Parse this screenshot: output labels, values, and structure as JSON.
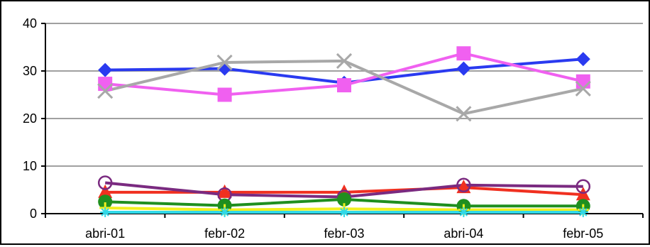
{
  "chart_data": {
    "type": "line",
    "categories": [
      "abri-01",
      "febr-02",
      "febr-03",
      "abri-04",
      "febr-05"
    ],
    "ylim": [
      0,
      40
    ],
    "yticks": [
      0,
      10,
      20,
      30,
      40
    ],
    "ytick_labels": [
      "0",
      "10",
      "20",
      "30",
      "40"
    ],
    "grid": true,
    "series": [
      {
        "values": [
          30.2,
          30.5,
          27.5,
          30.5,
          32.5
        ],
        "color": "#2a3af0",
        "marker": "diamond"
      },
      {
        "values": [
          27.3,
          25.0,
          27.0,
          33.7,
          27.8
        ],
        "color": "#f060f0",
        "marker": "square"
      },
      {
        "values": [
          25.8,
          31.8,
          32.1,
          21.0,
          26.3
        ],
        "color": "#a8a8a8",
        "marker": "x"
      },
      {
        "values": [
          4.5,
          4.5,
          4.5,
          5.5,
          4.0
        ],
        "color": "#f03020",
        "marker": "triangle"
      },
      {
        "values": [
          6.5,
          4.0,
          3.5,
          6.0,
          5.7
        ],
        "color": "#7a2a80",
        "marker": "circle-open"
      },
      {
        "values": [
          2.5,
          1.7,
          3.0,
          1.6,
          1.6
        ],
        "color": "#1f8f1f",
        "marker": "circle"
      },
      {
        "values": [
          1.2,
          0.8,
          1.0,
          0.8,
          0.8
        ],
        "color": "#f0f020",
        "marker": "plus"
      },
      {
        "values": [
          0.3,
          0.3,
          0.3,
          0.3,
          0.3
        ],
        "color": "#30d8e8",
        "marker": "star"
      }
    ]
  }
}
